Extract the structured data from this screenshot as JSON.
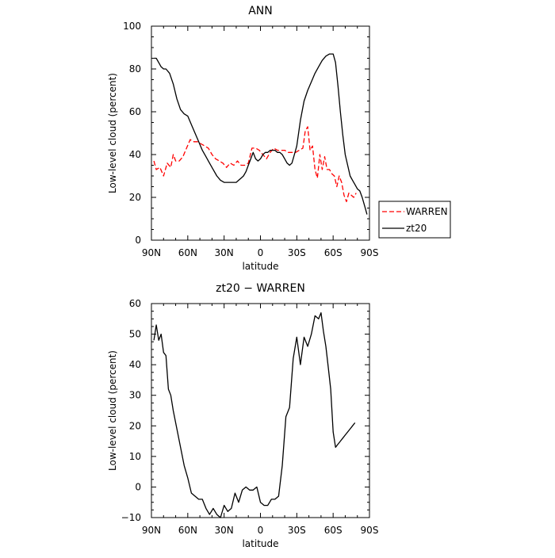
{
  "colors": {
    "warren": "#ff0000",
    "model": "#000000",
    "axes": "#000000"
  },
  "chart_data": [
    {
      "type": "line",
      "title": "ANN",
      "xlabel": "latitude",
      "ylabel": "Low-level cloud (percent)",
      "xlim": [
        -90,
        90
      ],
      "ylim": [
        0,
        100
      ],
      "xticks": [
        -90,
        -60,
        -30,
        0,
        30,
        60,
        90
      ],
      "xticklabels": [
        "90N",
        "60N",
        "30N",
        "0",
        "30S",
        "60S",
        "90S"
      ],
      "yticks": [
        0,
        20,
        40,
        60,
        80,
        100
      ],
      "yticklabels": [
        "0",
        "20",
        "40",
        "60",
        "80",
        "100"
      ],
      "legend": "right",
      "series": [
        {
          "name": "WARREN",
          "style": "dashed",
          "color": "#ff0000",
          "x": [
            -88,
            -86,
            -83,
            -80,
            -77,
            -74,
            -72,
            -70,
            -67,
            -64,
            -61,
            -58,
            -55,
            -52,
            -49,
            -46,
            -43,
            -40,
            -37,
            -34,
            -31,
            -28,
            -25,
            -22,
            -19,
            -16,
            -13,
            -10,
            -7,
            -4,
            -1,
            2,
            5,
            8,
            11,
            14,
            17,
            20,
            23,
            26,
            29,
            32,
            35,
            37,
            39,
            41,
            43,
            45,
            47,
            49,
            51,
            53,
            55,
            57,
            59,
            61,
            63,
            65,
            67,
            69,
            71,
            73,
            75,
            77,
            79
          ],
          "y": [
            37,
            33,
            34,
            30,
            36,
            34,
            40,
            37,
            37,
            39,
            43,
            47,
            46,
            46,
            45,
            44,
            43,
            40,
            38,
            37,
            36,
            34,
            36,
            35,
            37,
            35,
            35,
            36,
            43,
            43,
            42,
            40,
            38,
            41,
            43,
            42,
            42,
            42,
            41,
            41,
            41,
            42,
            43,
            51,
            53,
            42,
            44,
            33,
            29,
            40,
            33,
            39,
            33,
            33,
            31,
            30,
            25,
            30,
            27,
            21,
            18,
            22,
            21,
            20,
            22
          ]
        },
        {
          "name": "zt20",
          "style": "solid",
          "color": "#000000",
          "x": [
            -88,
            -86,
            -84,
            -82,
            -80,
            -78,
            -75,
            -72,
            -69,
            -66,
            -63,
            -60,
            -57,
            -54,
            -51,
            -48,
            -45,
            -42,
            -39,
            -36,
            -33,
            -30,
            -28,
            -26,
            -24,
            -22,
            -20,
            -18,
            -16,
            -14,
            -12,
            -10,
            -8,
            -6,
            -4,
            -2,
            0,
            2,
            4,
            6,
            8,
            10,
            12,
            14,
            16,
            18,
            20,
            22,
            24,
            26,
            28,
            30,
            33,
            36,
            39,
            42,
            45,
            48,
            51,
            54,
            57,
            60,
            62,
            64,
            66,
            68,
            70,
            72,
            74,
            76,
            78,
            80,
            82,
            84,
            86,
            88
          ],
          "y": [
            85,
            85,
            83,
            81,
            80,
            80,
            78,
            73,
            66,
            61,
            59,
            58,
            54,
            50,
            46,
            42,
            39,
            36,
            33,
            30,
            28,
            27,
            27,
            27,
            27,
            27,
            27,
            28,
            29,
            30,
            32,
            35,
            38,
            41,
            38,
            37,
            38,
            40,
            41,
            41,
            42,
            42,
            42,
            41,
            41,
            40,
            38,
            36,
            35,
            36,
            40,
            44,
            56,
            65,
            70,
            74,
            78,
            81,
            84,
            86,
            87,
            87,
            83,
            72,
            60,
            49,
            40,
            35,
            30,
            28,
            26,
            24,
            23,
            20,
            16,
            12
          ]
        }
      ]
    },
    {
      "type": "line",
      "title": "zt20 − WARREN",
      "xlabel": "latitude",
      "ylabel": "Low-level cloud (percent)",
      "xlim": [
        -90,
        90
      ],
      "ylim": [
        -10,
        60
      ],
      "xticks": [
        -90,
        -60,
        -30,
        0,
        30,
        60,
        90
      ],
      "xticklabels": [
        "90N",
        "60N",
        "30N",
        "0",
        "30S",
        "60S",
        "90S"
      ],
      "yticks": [
        -10,
        0,
        10,
        20,
        30,
        40,
        50,
        60
      ],
      "yticklabels": [
        "−10",
        "0",
        "10",
        "20",
        "30",
        "40",
        "50",
        "60"
      ],
      "series": [
        {
          "style": "solid",
          "color": "#000000",
          "x": [
            -88,
            -86,
            -84,
            -82,
            -80,
            -78,
            -76,
            -74,
            -72,
            -69,
            -66,
            -63,
            -60,
            -57,
            -54,
            -51,
            -48,
            -45,
            -42,
            -39,
            -36,
            -33,
            -30,
            -27,
            -24,
            -21,
            -18,
            -15,
            -12,
            -9,
            -6,
            -3,
            0,
            3,
            6,
            9,
            12,
            15,
            18,
            21,
            24,
            27,
            30,
            33,
            36,
            39,
            42,
            45,
            48,
            50,
            52,
            54,
            56,
            58,
            60,
            62,
            64,
            66,
            68,
            70,
            72,
            74,
            76,
            78
          ],
          "y": [
            48,
            53,
            48,
            50,
            44,
            43,
            32,
            30,
            25,
            19,
            13,
            7,
            3,
            -2,
            -3,
            -4,
            -4,
            -7,
            -9,
            -7,
            -9,
            -10,
            -6,
            -8,
            -7,
            -2,
            -5,
            -1,
            0,
            -1,
            -1,
            0,
            -5,
            -6,
            -6,
            -4,
            -4,
            -3,
            7,
            23,
            26,
            42,
            49,
            40,
            49,
            46,
            50,
            56,
            55,
            57,
            51,
            46,
            39,
            32,
            18,
            13,
            14,
            15,
            16,
            17,
            18,
            19,
            20,
            21
          ]
        }
      ]
    }
  ]
}
